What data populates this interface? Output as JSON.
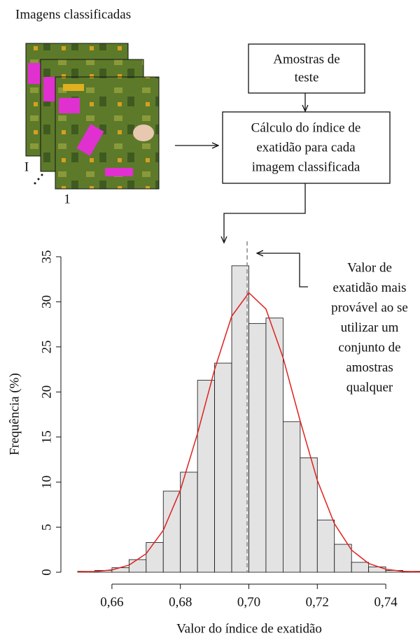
{
  "diagram": {
    "images_label": "Imagens classificadas",
    "image_last": "I",
    "image_first": "1",
    "box_samples": [
      "Amostras de",
      "teste"
    ],
    "box_calc": [
      "Cálculo do índice de",
      "exatidão para cada",
      "imagem classificada"
    ]
  },
  "chart_data": {
    "type": "histogram",
    "xlabel": "Valor do índice de exatidão",
    "ylabel": "Frequência (%)",
    "bins": [
      0.65,
      0.655,
      0.66,
      0.665,
      0.67,
      0.675,
      0.68,
      0.685,
      0.69,
      0.695,
      0.7,
      0.705,
      0.71,
      0.715,
      0.72,
      0.725,
      0.73,
      0.735,
      0.74,
      0.745,
      0.75
    ],
    "values": [
      0.1,
      0.2,
      0.5,
      1.4,
      3.3,
      9.0,
      11.1,
      21.3,
      23.2,
      34.0,
      27.6,
      28.2,
      16.7,
      12.7,
      5.8,
      3.1,
      1.1,
      0.6,
      0.2,
      0.1
    ],
    "color": "#e3e3e3",
    "curve": {
      "color": "#e02020",
      "x": [
        0.65,
        0.655,
        0.66,
        0.665,
        0.67,
        0.675,
        0.68,
        0.685,
        0.69,
        0.695,
        0.7,
        0.705,
        0.71,
        0.715,
        0.72,
        0.725,
        0.73,
        0.735,
        0.74,
        0.745,
        0.75
      ],
      "values": [
        0.02,
        0.07,
        0.26,
        0.79,
        2.06,
        4.66,
        9.11,
        15.4,
        22.5,
        28.4,
        31.0,
        29.2,
        23.8,
        16.8,
        10.2,
        5.39,
        2.46,
        0.97,
        0.33,
        0.1,
        0.02
      ]
    },
    "reference_x": 0.6995,
    "annotation": [
      "Valor de",
      "exatidão mais",
      "provável ao se",
      "utilizar um",
      "conjunto de",
      "amostras",
      "qualquer"
    ],
    "xlim": [
      0.65,
      0.75
    ],
    "ylim": [
      0,
      35
    ],
    "xticks": [
      {
        "value": 0.66,
        "label": "0,66"
      },
      {
        "value": 0.68,
        "label": "0,68"
      },
      {
        "value": 0.7,
        "label": "0,70"
      },
      {
        "value": 0.72,
        "label": "0,72"
      },
      {
        "value": 0.74,
        "label": "0,74"
      }
    ],
    "yticks": [
      0,
      5,
      10,
      15,
      20,
      25,
      30,
      35
    ]
  }
}
